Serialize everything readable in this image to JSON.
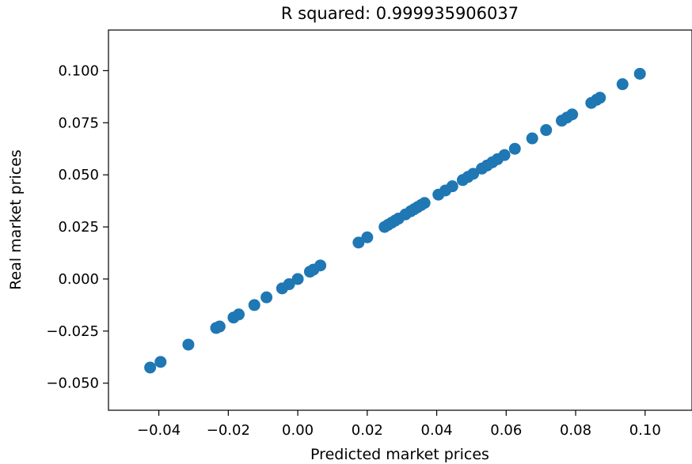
{
  "chart_data": {
    "type": "scatter",
    "title": "R squared: 0.999935906037",
    "xlabel": "Predicted market prices",
    "ylabel": "Real market prices",
    "xlim": [
      -0.0545,
      0.1135
    ],
    "ylim": [
      -0.063,
      0.1195
    ],
    "xticks": [
      -0.04,
      -0.02,
      0.0,
      0.02,
      0.04,
      0.06,
      0.08,
      0.1
    ],
    "xtick_labels": [
      "−0.04",
      "−0.02",
      "0.00",
      "0.02",
      "0.04",
      "0.06",
      "0.08",
      "0.10"
    ],
    "yticks": [
      -0.05,
      -0.025,
      0.0,
      0.025,
      0.05,
      0.075,
      0.1
    ],
    "ytick_labels": [
      "−0.050",
      "−0.025",
      "0.000",
      "0.025",
      "0.050",
      "0.075",
      "0.100"
    ],
    "grid": false,
    "marker_color": "#1f77b4",
    "series": [
      {
        "points": [
          [
            -0.0425,
            -0.0425
          ],
          [
            -0.0395,
            -0.0398
          ],
          [
            -0.0315,
            -0.0315
          ],
          [
            -0.0235,
            -0.0235
          ],
          [
            -0.0225,
            -0.0228
          ],
          [
            -0.0185,
            -0.0185
          ],
          [
            -0.017,
            -0.017
          ],
          [
            -0.0125,
            -0.0125
          ],
          [
            -0.009,
            -0.0088
          ],
          [
            -0.0045,
            -0.0045
          ],
          [
            -0.0025,
            -0.0025
          ],
          [
            0.0,
            0.0
          ],
          [
            0.0035,
            0.0035
          ],
          [
            0.0045,
            0.0045
          ],
          [
            0.0065,
            0.0065
          ],
          [
            0.0175,
            0.0175
          ],
          [
            0.02,
            0.02
          ],
          [
            0.025,
            0.025
          ],
          [
            0.026,
            0.026
          ],
          [
            0.027,
            0.027
          ],
          [
            0.028,
            0.028
          ],
          [
            0.029,
            0.029
          ],
          [
            0.031,
            0.031
          ],
          [
            0.0325,
            0.0325
          ],
          [
            0.0335,
            0.0335
          ],
          [
            0.0345,
            0.0345
          ],
          [
            0.0355,
            0.0355
          ],
          [
            0.0365,
            0.0365
          ],
          [
            0.0405,
            0.0405
          ],
          [
            0.0425,
            0.0425
          ],
          [
            0.0445,
            0.0445
          ],
          [
            0.0475,
            0.0475
          ],
          [
            0.049,
            0.049
          ],
          [
            0.0505,
            0.0505
          ],
          [
            0.053,
            0.053
          ],
          [
            0.0545,
            0.0545
          ],
          [
            0.056,
            0.056
          ],
          [
            0.0575,
            0.0575
          ],
          [
            0.0595,
            0.0595
          ],
          [
            0.0625,
            0.0625
          ],
          [
            0.0675,
            0.0675
          ],
          [
            0.0715,
            0.0715
          ],
          [
            0.076,
            0.076
          ],
          [
            0.0775,
            0.0775
          ],
          [
            0.079,
            0.079
          ],
          [
            0.0845,
            0.0845
          ],
          [
            0.086,
            0.086
          ],
          [
            0.087,
            0.087
          ],
          [
            0.0935,
            0.0935
          ],
          [
            0.0985,
            0.0985
          ]
        ]
      }
    ]
  }
}
